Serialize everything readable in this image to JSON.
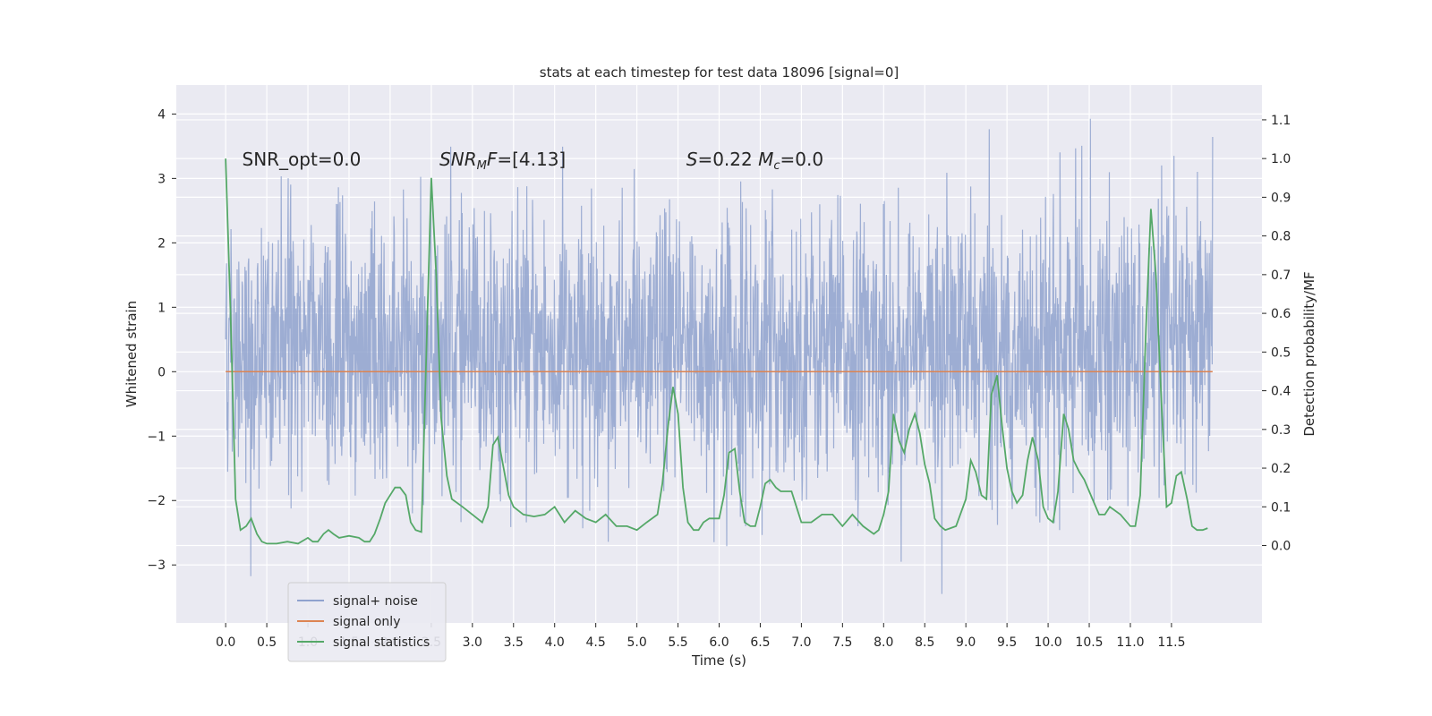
{
  "chart_data": {
    "type": "line",
    "title": "stats at each timestep for test data 18096 [signal=0]",
    "xlabel": "Time (s)",
    "ylabel_left": "Whitened strain",
    "ylabel_right": "Detection probability/MF",
    "xlim": [
      -0.6,
      12.6
    ],
    "ylim_left": [
      -3.9,
      4.45
    ],
    "ylim_right": [
      -0.2,
      1.19
    ],
    "x_ticks": [
      0.0,
      0.5,
      1.0,
      1.5,
      2.0,
      2.5,
      3.0,
      3.5,
      4.0,
      4.5,
      5.0,
      5.5,
      6.0,
      6.5,
      7.0,
      7.5,
      8.0,
      8.5,
      9.0,
      9.5,
      10.0,
      10.5,
      11.0,
      11.5
    ],
    "x_tick_labels": [
      "0.0",
      "0.5",
      "1.0",
      "1.5",
      "2.0",
      "2.5",
      "3.0",
      "3.5",
      "4.0",
      "4.5",
      "5.0",
      "5.5",
      "6.0",
      "6.5",
      "7.0",
      "7.5",
      "8.0",
      "8.5",
      "9.0",
      "9.5",
      "10.0",
      "10.5",
      "11.0",
      "11.5"
    ],
    "y_left_ticks": [
      -3,
      -2,
      -1,
      0,
      1,
      2,
      3,
      4
    ],
    "y_left_tick_labels": [
      "−3",
      "−2",
      "−1",
      "0",
      "1",
      "2",
      "3",
      "4"
    ],
    "y_right_ticks": [
      0.0,
      0.1,
      0.2,
      0.3,
      0.4,
      0.5,
      0.6,
      0.7,
      0.8,
      0.9,
      1.0,
      1.1
    ],
    "y_right_tick_labels": [
      "0.0",
      "0.1",
      "0.2",
      "0.3",
      "0.4",
      "0.5",
      "0.6",
      "0.7",
      "0.8",
      "0.9",
      "1.0",
      "1.1"
    ],
    "grid": true,
    "legend_position": "lower-left",
    "annotations": [
      {
        "text": "SNR_opt=0.0",
        "x": 0.2,
        "y": 3.3
      },
      {
        "text": "SNR_MF=[4.13]",
        "x": 2.6,
        "y": 3.3
      },
      {
        "text": "S=0.22   M_c=0.0",
        "x": 5.6,
        "y": 3.3
      }
    ],
    "series": [
      {
        "name": "signal+ noise",
        "axis": "left",
        "color": "#8fa2ce",
        "description": "whitened strain noise, range approx [-3.45, 4.1], duration 0 to 12 s",
        "x_range": [
          0.0,
          12.0
        ],
        "y_range": [
          -3.45,
          4.1
        ]
      },
      {
        "name": "signal only",
        "axis": "left",
        "color": "#dd8452",
        "x": [
          0.0,
          12.0
        ],
        "y": [
          0.0,
          0.0
        ]
      },
      {
        "name": "signal statistics",
        "axis": "right",
        "color": "#55a868",
        "x": [
          0.0,
          0.06,
          0.12,
          0.18,
          0.25,
          0.31,
          0.38,
          0.44,
          0.5,
          0.62,
          0.75,
          0.88,
          1.0,
          1.06,
          1.12,
          1.19,
          1.25,
          1.31,
          1.38,
          1.5,
          1.62,
          1.69,
          1.75,
          1.81,
          1.88,
          1.94,
          2.0,
          2.06,
          2.12,
          2.19,
          2.25,
          2.31,
          2.38,
          2.44,
          2.5,
          2.56,
          2.62,
          2.69,
          2.75,
          2.88,
          3.0,
          3.06,
          3.12,
          3.19,
          3.25,
          3.31,
          3.38,
          3.44,
          3.5,
          3.62,
          3.75,
          3.88,
          4.0,
          4.12,
          4.25,
          4.38,
          4.5,
          4.62,
          4.75,
          4.88,
          5.0,
          5.12,
          5.25,
          5.31,
          5.38,
          5.44,
          5.5,
          5.56,
          5.62,
          5.69,
          5.75,
          5.81,
          5.88,
          6.0,
          6.06,
          6.12,
          6.19,
          6.25,
          6.31,
          6.38,
          6.44,
          6.5,
          6.56,
          6.62,
          6.69,
          6.75,
          6.88,
          7.0,
          7.12,
          7.25,
          7.38,
          7.5,
          7.62,
          7.75,
          7.88,
          7.94,
          8.0,
          8.06,
          8.12,
          8.19,
          8.25,
          8.31,
          8.38,
          8.44,
          8.5,
          8.56,
          8.62,
          8.69,
          8.75,
          8.88,
          9.0,
          9.06,
          9.12,
          9.19,
          9.25,
          9.31,
          9.38,
          9.44,
          9.5,
          9.56,
          9.62,
          9.69,
          9.75,
          9.81,
          9.88,
          9.94,
          10.0,
          10.06,
          10.12,
          10.19,
          10.25,
          10.31,
          10.38,
          10.44,
          10.5,
          10.56,
          10.62,
          10.69,
          10.75,
          10.88,
          11.0,
          11.06,
          11.12,
          11.19,
          11.25,
          11.31,
          11.38,
          11.44,
          11.5,
          11.56,
          11.62,
          11.69,
          11.75,
          11.81,
          11.88,
          11.94
        ],
        "y": [
          1.0,
          0.6,
          0.12,
          0.04,
          0.05,
          0.07,
          0.03,
          0.01,
          0.005,
          0.005,
          0.01,
          0.005,
          0.02,
          0.01,
          0.01,
          0.03,
          0.04,
          0.03,
          0.02,
          0.025,
          0.02,
          0.01,
          0.01,
          0.03,
          0.07,
          0.11,
          0.13,
          0.15,
          0.15,
          0.13,
          0.06,
          0.04,
          0.035,
          0.5,
          0.95,
          0.7,
          0.33,
          0.18,
          0.12,
          0.1,
          0.08,
          0.07,
          0.06,
          0.1,
          0.26,
          0.28,
          0.2,
          0.13,
          0.1,
          0.08,
          0.075,
          0.08,
          0.1,
          0.06,
          0.09,
          0.07,
          0.06,
          0.08,
          0.05,
          0.05,
          0.04,
          0.06,
          0.08,
          0.16,
          0.31,
          0.41,
          0.34,
          0.15,
          0.06,
          0.04,
          0.04,
          0.06,
          0.07,
          0.07,
          0.13,
          0.24,
          0.25,
          0.14,
          0.06,
          0.05,
          0.05,
          0.1,
          0.16,
          0.17,
          0.15,
          0.14,
          0.14,
          0.06,
          0.06,
          0.08,
          0.08,
          0.05,
          0.08,
          0.05,
          0.03,
          0.04,
          0.08,
          0.14,
          0.34,
          0.27,
          0.24,
          0.3,
          0.34,
          0.29,
          0.21,
          0.16,
          0.07,
          0.05,
          0.04,
          0.05,
          0.12,
          0.22,
          0.19,
          0.13,
          0.12,
          0.39,
          0.44,
          0.31,
          0.2,
          0.14,
          0.11,
          0.13,
          0.22,
          0.28,
          0.22,
          0.1,
          0.07,
          0.06,
          0.14,
          0.34,
          0.3,
          0.22,
          0.19,
          0.17,
          0.14,
          0.11,
          0.08,
          0.08,
          0.1,
          0.08,
          0.05,
          0.05,
          0.13,
          0.56,
          0.87,
          0.7,
          0.36,
          0.1,
          0.11,
          0.18,
          0.19,
          0.12,
          0.05,
          0.04,
          0.04,
          0.045
        ]
      }
    ]
  }
}
